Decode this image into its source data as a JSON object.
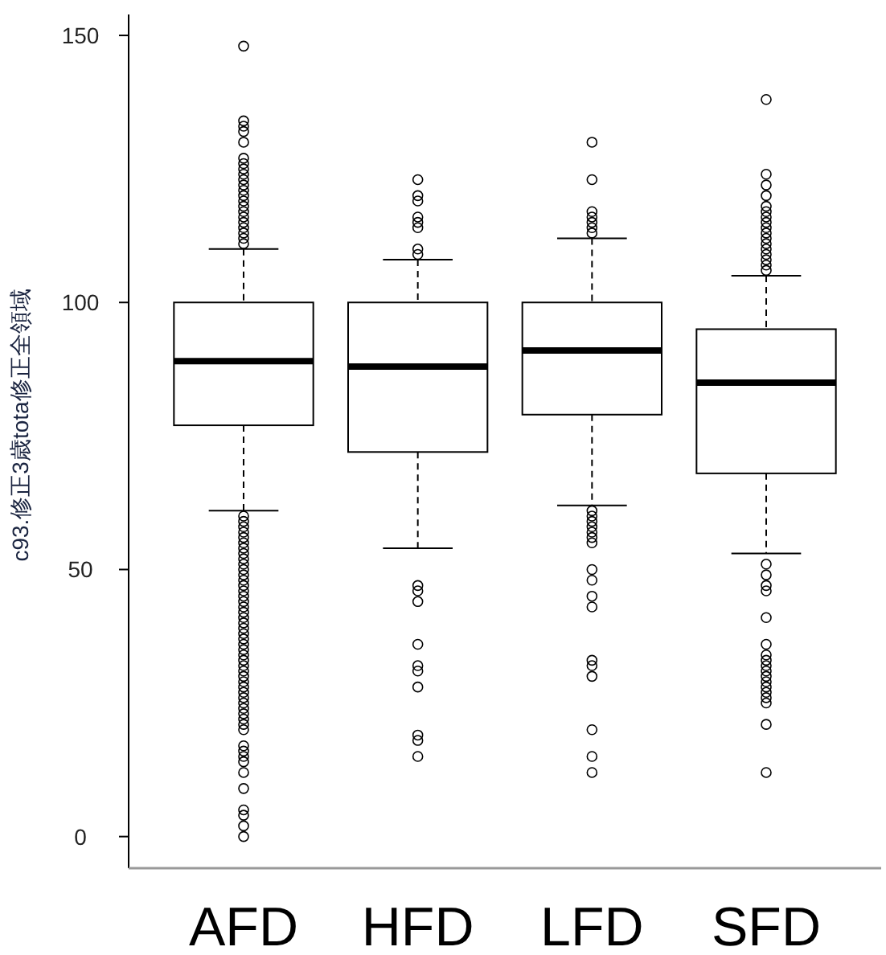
{
  "chart_data": {
    "type": "box",
    "ylabel": "c93.修正3歳tota修正全領域",
    "categories": [
      "AFD",
      "HFD",
      "LFD",
      "SFD"
    ],
    "ylim": [
      -5.92,
      153.92
    ],
    "yticks": [
      0,
      50,
      100,
      150
    ],
    "marker": "circle",
    "boxes": [
      {
        "low": 61,
        "q1": 77,
        "median": 89,
        "q3": 100,
        "high": 110,
        "outliers": [
          148,
          134,
          133,
          132,
          130,
          127,
          126,
          125,
          124,
          123,
          122,
          121,
          120,
          119,
          118,
          117,
          116,
          115,
          114,
          113,
          112,
          111,
          60,
          59,
          58,
          57,
          56,
          55,
          54,
          53,
          52,
          51,
          50,
          49,
          48,
          47,
          46,
          45,
          44,
          43,
          42,
          41,
          40,
          39,
          38,
          37,
          36,
          35,
          34,
          33,
          32,
          31,
          30,
          29,
          28,
          27,
          26,
          25,
          24,
          23,
          22,
          21,
          20,
          17,
          16,
          15,
          14,
          12,
          9,
          5,
          4,
          2,
          0
        ]
      },
      {
        "low": 54,
        "q1": 72,
        "median": 88,
        "q3": 100,
        "high": 108,
        "outliers": [
          123,
          120,
          119,
          116,
          115,
          114,
          110,
          109,
          47,
          46,
          44,
          36,
          32,
          31,
          28,
          19,
          18,
          15
        ]
      },
      {
        "low": 62,
        "q1": 79,
        "median": 91,
        "q3": 100,
        "high": 112,
        "outliers": [
          130,
          123,
          117,
          116,
          115,
          114,
          113,
          61,
          60,
          59,
          58,
          57,
          56,
          55,
          50,
          48,
          45,
          43,
          33,
          32,
          30,
          20,
          15,
          12
        ]
      },
      {
        "low": 53,
        "q1": 68,
        "median": 85,
        "q3": 95,
        "high": 105,
        "outliers": [
          138,
          124,
          122,
          120,
          118,
          117,
          116,
          115,
          114,
          113,
          112,
          111,
          110,
          109,
          108,
          107,
          106,
          51,
          49,
          47,
          46,
          41,
          36,
          34,
          33,
          32,
          31,
          30,
          29,
          28,
          27,
          26,
          25,
          21,
          12
        ]
      }
    ]
  }
}
